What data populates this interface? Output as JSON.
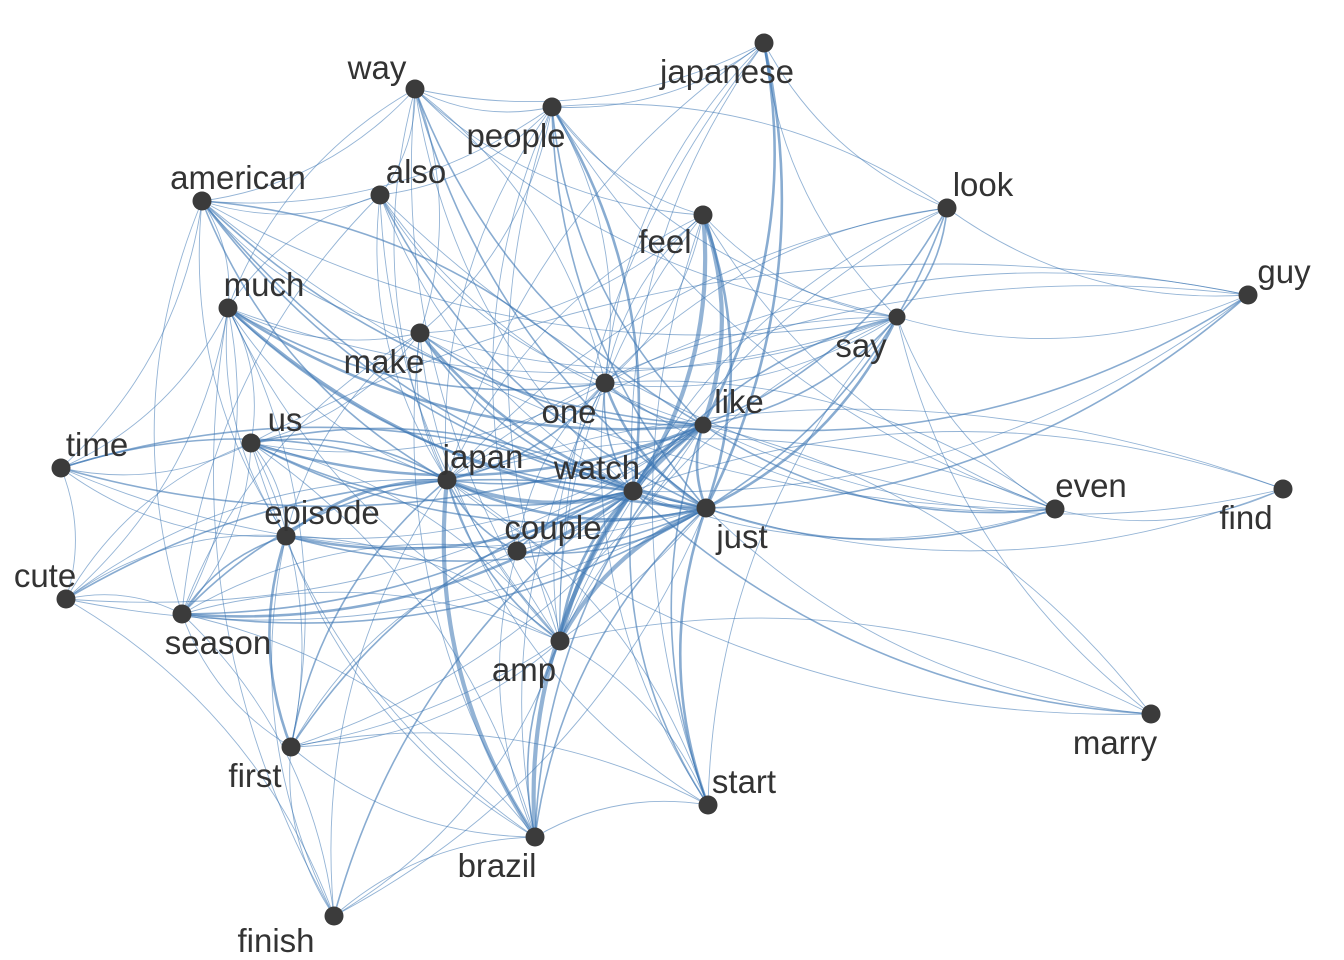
{
  "graph": {
    "edge_color": "#3a74b3",
    "node_color": "#3b3b3b",
    "label_color": "#333333",
    "nodes": [
      {
        "id": "way",
        "label": "way"
      },
      {
        "id": "people",
        "label": "people"
      },
      {
        "id": "japanese",
        "label": "japanese"
      },
      {
        "id": "american",
        "label": "american"
      },
      {
        "id": "also",
        "label": "also"
      },
      {
        "id": "feel",
        "label": "feel"
      },
      {
        "id": "look",
        "label": "look"
      },
      {
        "id": "guy",
        "label": "guy"
      },
      {
        "id": "much",
        "label": "much"
      },
      {
        "id": "make",
        "label": "make"
      },
      {
        "id": "say",
        "label": "say"
      },
      {
        "id": "one",
        "label": "one"
      },
      {
        "id": "like",
        "label": "like"
      },
      {
        "id": "time",
        "label": "time"
      },
      {
        "id": "us",
        "label": "us"
      },
      {
        "id": "japan",
        "label": "japan"
      },
      {
        "id": "watch",
        "label": "watch"
      },
      {
        "id": "just",
        "label": "just"
      },
      {
        "id": "even",
        "label": "even"
      },
      {
        "id": "find",
        "label": "find"
      },
      {
        "id": "episode",
        "label": "episode"
      },
      {
        "id": "couple",
        "label": "couple"
      },
      {
        "id": "cute",
        "label": "cute"
      },
      {
        "id": "season",
        "label": "season"
      },
      {
        "id": "amp",
        "label": "amp"
      },
      {
        "id": "marry",
        "label": "marry"
      },
      {
        "id": "first",
        "label": "first"
      },
      {
        "id": "start",
        "label": "start"
      },
      {
        "id": "brazil",
        "label": "brazil"
      },
      {
        "id": "finish",
        "label": "finish"
      }
    ],
    "edges": [
      [
        "like",
        "feel",
        4
      ],
      [
        "watch",
        "feel",
        4
      ],
      [
        "just",
        "feel",
        3
      ],
      [
        "just",
        "japanese",
        3
      ],
      [
        "like",
        "japanese",
        3
      ],
      [
        "watch",
        "people",
        3
      ],
      [
        "japan",
        "brazil",
        4
      ],
      [
        "watch",
        "brazil",
        4
      ],
      [
        "japan",
        "watch",
        4
      ],
      [
        "like",
        "amp",
        4
      ],
      [
        "just",
        "amp",
        4
      ],
      [
        "watch",
        "amp",
        3
      ],
      [
        "episode",
        "first",
        3
      ],
      [
        "just",
        "start",
        3
      ],
      [
        "like",
        "start",
        2
      ],
      [
        "season",
        "watch",
        3
      ],
      [
        "episode",
        "watch",
        3
      ],
      [
        "us",
        "like",
        3
      ],
      [
        "time",
        "like",
        2
      ],
      [
        "much",
        "just",
        3
      ],
      [
        "much",
        "like",
        3
      ],
      [
        "much",
        "watch",
        2
      ],
      [
        "american",
        "just",
        2
      ],
      [
        "american",
        "like",
        2
      ],
      [
        "american",
        "watch",
        2
      ],
      [
        "make",
        "just",
        3
      ],
      [
        "make",
        "like",
        2
      ],
      [
        "make",
        "watch",
        2
      ],
      [
        "one",
        "just",
        3
      ],
      [
        "one",
        "watch",
        2
      ],
      [
        "one",
        "like",
        2
      ],
      [
        "just",
        "say",
        3
      ],
      [
        "like",
        "say",
        2
      ],
      [
        "just",
        "look",
        2
      ],
      [
        "like",
        "look",
        2
      ],
      [
        "say",
        "look",
        2
      ],
      [
        "just",
        "guy",
        2
      ],
      [
        "like",
        "guy",
        2
      ],
      [
        "watch",
        "guy",
        1
      ],
      [
        "say",
        "guy",
        1
      ],
      [
        "look",
        "guy",
        1
      ],
      [
        "just",
        "even",
        2
      ],
      [
        "like",
        "even",
        2
      ],
      [
        "watch",
        "even",
        1
      ],
      [
        "say",
        "even",
        1
      ],
      [
        "just",
        "find",
        1
      ],
      [
        "like",
        "find",
        1
      ],
      [
        "even",
        "find",
        1
      ],
      [
        "watch",
        "marry",
        2
      ],
      [
        "just",
        "marry",
        1
      ],
      [
        "japan",
        "marry",
        1
      ],
      [
        "watch",
        "just",
        3
      ],
      [
        "like",
        "just",
        3
      ],
      [
        "like",
        "watch",
        3
      ],
      [
        "japan",
        "just",
        3
      ],
      [
        "japan",
        "like",
        2
      ],
      [
        "japan",
        "one",
        2
      ],
      [
        "japan",
        "episode",
        3
      ],
      [
        "japan",
        "season",
        2
      ],
      [
        "japan",
        "us",
        2
      ],
      [
        "japan",
        "time",
        2
      ],
      [
        "japan",
        "cute",
        1
      ],
      [
        "japan",
        "couple",
        2
      ],
      [
        "japan",
        "amp",
        2
      ],
      [
        "japan",
        "first",
        2
      ],
      [
        "japan",
        "start",
        1
      ],
      [
        "japan",
        "finish",
        1
      ],
      [
        "watch",
        "first",
        2
      ],
      [
        "watch",
        "finish",
        2
      ],
      [
        "watch",
        "start",
        2
      ],
      [
        "watch",
        "couple",
        2
      ],
      [
        "watch",
        "cute",
        2
      ],
      [
        "watch",
        "time",
        2
      ],
      [
        "watch",
        "us",
        2
      ],
      [
        "just",
        "brazil",
        2
      ],
      [
        "like",
        "brazil",
        2
      ],
      [
        "amp",
        "brazil",
        2
      ],
      [
        "couple",
        "brazil",
        1
      ],
      [
        "couple",
        "just",
        2
      ],
      [
        "couple",
        "like",
        1
      ],
      [
        "couple",
        "first",
        1
      ],
      [
        "couple",
        "season",
        1
      ],
      [
        "episode",
        "season",
        2
      ],
      [
        "episode",
        "us",
        1
      ],
      [
        "episode",
        "cute",
        1
      ],
      [
        "episode",
        "brazil",
        1
      ],
      [
        "episode",
        "just",
        2
      ],
      [
        "episode",
        "like",
        1
      ],
      [
        "episode",
        "finish",
        1
      ],
      [
        "season",
        "first",
        1
      ],
      [
        "season",
        "us",
        1
      ],
      [
        "season",
        "cute",
        1
      ],
      [
        "season",
        "much",
        1
      ],
      [
        "season",
        "just",
        2
      ],
      [
        "season",
        "like",
        2
      ],
      [
        "first",
        "brazil",
        1
      ],
      [
        "first",
        "finish",
        1
      ],
      [
        "first",
        "just",
        1
      ],
      [
        "first",
        "like",
        1
      ],
      [
        "first",
        "amp",
        1
      ],
      [
        "first",
        "us",
        1
      ],
      [
        "first",
        "much",
        1
      ],
      [
        "cute",
        "just",
        1
      ],
      [
        "cute",
        "like",
        1
      ],
      [
        "cute",
        "time",
        1
      ],
      [
        "cute",
        "much",
        1
      ],
      [
        "time",
        "much",
        1
      ],
      [
        "time",
        "just",
        1
      ],
      [
        "time",
        "us",
        1
      ],
      [
        "time",
        "american",
        1
      ],
      [
        "time",
        "episode",
        1
      ],
      [
        "us",
        "just",
        2
      ],
      [
        "us",
        "watch",
        2
      ],
      [
        "us",
        "much",
        1
      ],
      [
        "us",
        "one",
        1
      ],
      [
        "us",
        "make",
        1
      ],
      [
        "us",
        "cute",
        1
      ],
      [
        "us",
        "brazil",
        1
      ],
      [
        "much",
        "american",
        1
      ],
      [
        "much",
        "one",
        2
      ],
      [
        "much",
        "make",
        1
      ],
      [
        "much",
        "japan",
        1
      ],
      [
        "much",
        "episode",
        1
      ],
      [
        "much",
        "finish",
        1
      ],
      [
        "much",
        "amp",
        1
      ],
      [
        "much",
        "say",
        1
      ],
      [
        "make",
        "one",
        1
      ],
      [
        "make",
        "japan",
        1
      ],
      [
        "make",
        "amp",
        1
      ],
      [
        "make",
        "brazil",
        1
      ],
      [
        "make",
        "season",
        1
      ],
      [
        "make",
        "episode",
        1
      ],
      [
        "make",
        "way",
        1
      ],
      [
        "make",
        "people",
        1
      ],
      [
        "make",
        "feel",
        1
      ],
      [
        "make",
        "say",
        1
      ],
      [
        "one",
        "amp",
        1
      ],
      [
        "one",
        "start",
        1
      ],
      [
        "one",
        "even",
        1
      ],
      [
        "one",
        "people",
        1
      ],
      [
        "one",
        "way",
        1
      ],
      [
        "one",
        "american",
        2
      ],
      [
        "one",
        "feel",
        1
      ],
      [
        "one",
        "say",
        1
      ],
      [
        "one",
        "couple",
        1
      ],
      [
        "one",
        "brazil",
        1
      ],
      [
        "american",
        "japan",
        2
      ],
      [
        "american",
        "make",
        1
      ],
      [
        "american",
        "also",
        1
      ],
      [
        "american",
        "way",
        1
      ],
      [
        "american",
        "people",
        1
      ],
      [
        "american",
        "episode",
        1
      ],
      [
        "american",
        "season",
        1
      ],
      [
        "american",
        "say",
        1
      ],
      [
        "american",
        "even",
        1
      ],
      [
        "also",
        "just",
        2
      ],
      [
        "also",
        "like",
        1
      ],
      [
        "also",
        "watch",
        1
      ],
      [
        "also",
        "japan",
        1
      ],
      [
        "also",
        "one",
        1
      ],
      [
        "also",
        "amp",
        1
      ],
      [
        "also",
        "people",
        1
      ],
      [
        "also",
        "way",
        1
      ],
      [
        "also",
        "season",
        1
      ],
      [
        "also",
        "even",
        1
      ],
      [
        "also",
        "much",
        1
      ],
      [
        "way",
        "just",
        2
      ],
      [
        "way",
        "like",
        2
      ],
      [
        "way",
        "watch",
        1
      ],
      [
        "way",
        "people",
        1
      ],
      [
        "way",
        "japanese",
        1
      ],
      [
        "way",
        "feel",
        1
      ],
      [
        "way",
        "japan",
        1
      ],
      [
        "way",
        "say",
        1
      ],
      [
        "way",
        "much",
        1
      ],
      [
        "way",
        "amp",
        1
      ],
      [
        "people",
        "just",
        2
      ],
      [
        "people",
        "like",
        2
      ],
      [
        "people",
        "japan",
        1
      ],
      [
        "people",
        "say",
        1
      ],
      [
        "people",
        "feel",
        1
      ],
      [
        "people",
        "japanese",
        1
      ],
      [
        "people",
        "couple",
        1
      ],
      [
        "people",
        "amp",
        1
      ],
      [
        "people",
        "even",
        1
      ],
      [
        "japanese",
        "say",
        1
      ],
      [
        "japanese",
        "look",
        1
      ],
      [
        "japanese",
        "watch",
        1
      ],
      [
        "japanese",
        "japan",
        1
      ],
      [
        "japanese",
        "one",
        1
      ],
      [
        "japanese",
        "amp",
        1
      ],
      [
        "feel",
        "say",
        1
      ],
      [
        "feel",
        "amp",
        1
      ],
      [
        "feel",
        "japan",
        1
      ],
      [
        "feel",
        "one",
        1
      ],
      [
        "feel",
        "start",
        1
      ],
      [
        "feel",
        "even",
        1
      ],
      [
        "look",
        "watch",
        1
      ],
      [
        "look",
        "one",
        1
      ],
      [
        "look",
        "japan",
        1
      ],
      [
        "look",
        "people",
        1
      ],
      [
        "look",
        "amp",
        1
      ],
      [
        "say",
        "watch",
        2
      ],
      [
        "say",
        "japan",
        1
      ],
      [
        "say",
        "amp",
        1
      ],
      [
        "say",
        "start",
        1
      ],
      [
        "say",
        "marry",
        1
      ],
      [
        "guy",
        "japan",
        1
      ],
      [
        "guy",
        "one",
        1
      ],
      [
        "guy",
        "us",
        1
      ],
      [
        "even",
        "japan",
        1
      ],
      [
        "even",
        "one",
        1
      ],
      [
        "find",
        "japan",
        1
      ],
      [
        "find",
        "watch",
        1
      ],
      [
        "marry",
        "like",
        1
      ],
      [
        "marry",
        "amp",
        1
      ],
      [
        "start",
        "amp",
        1
      ],
      [
        "start",
        "brazil",
        1
      ],
      [
        "start",
        "first",
        1
      ],
      [
        "start",
        "japan",
        1
      ],
      [
        "brazil",
        "finish",
        1
      ],
      [
        "brazil",
        "season",
        1
      ],
      [
        "brazil",
        "us",
        1
      ],
      [
        "finish",
        "season",
        1
      ],
      [
        "finish",
        "cute",
        1
      ],
      [
        "finish",
        "amp",
        1
      ],
      [
        "finish",
        "just",
        1
      ],
      [
        "amp",
        "season",
        1
      ],
      [
        "amp",
        "episode",
        1
      ],
      [
        "amp",
        "couple",
        1
      ],
      [
        "amp",
        "us",
        1
      ]
    ]
  }
}
